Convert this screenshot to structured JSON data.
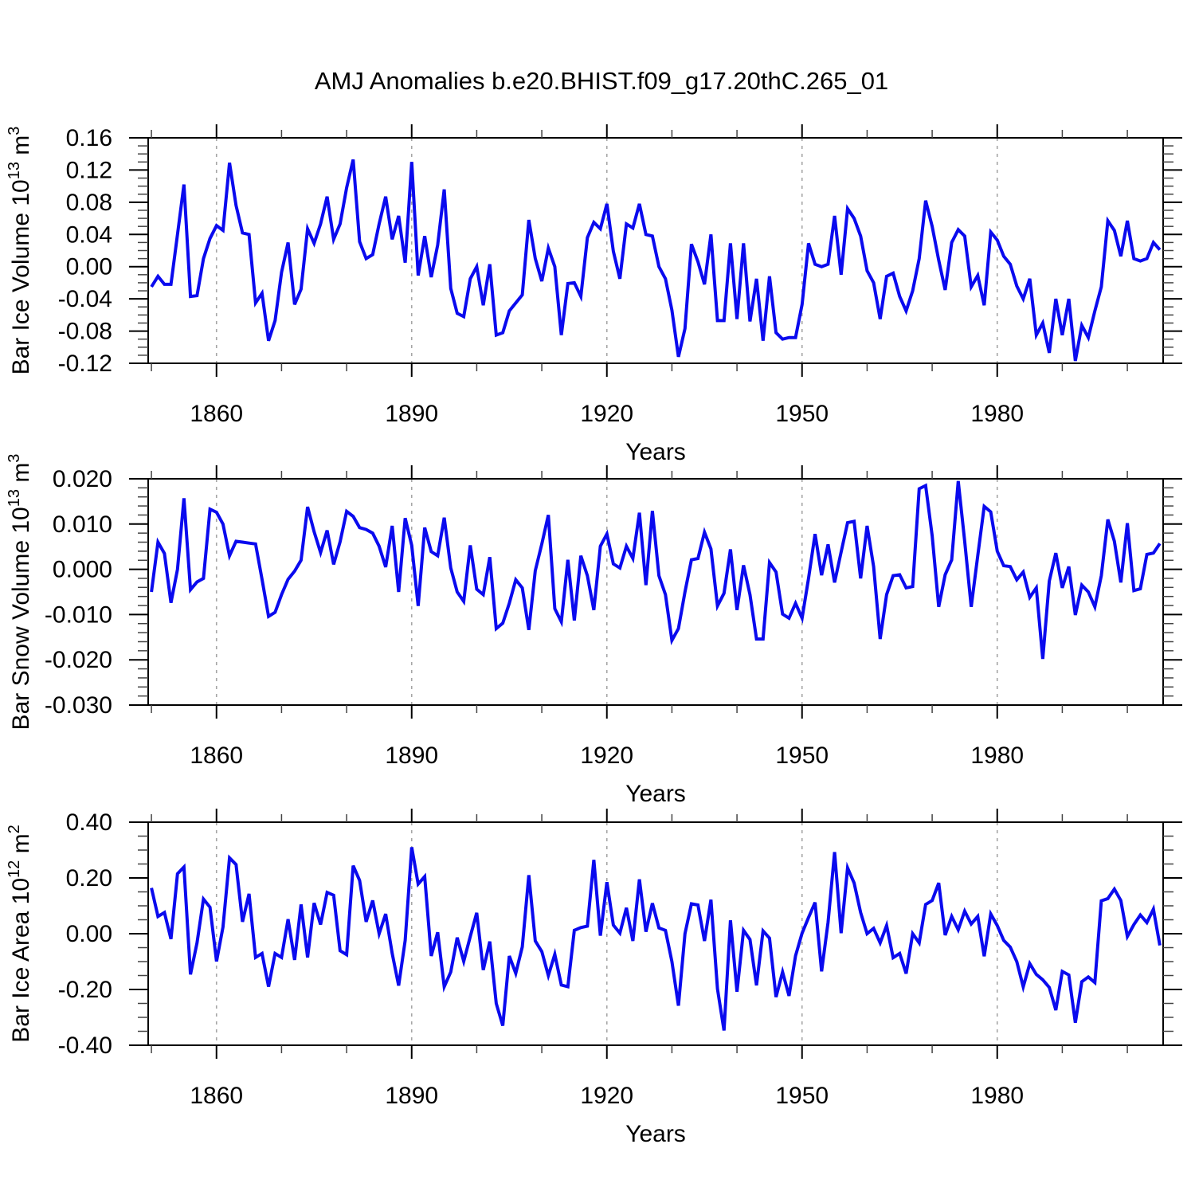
{
  "title": "AMJ Anomalies b.e20.BHIST.f09_g17.20thC.265_01",
  "colors": {
    "line": "#0a0aee",
    "grid_dashed": "#a6a6a6",
    "axis": "#000000",
    "minor_tick": "#444444",
    "background": "#ffffff",
    "text": "#000000"
  },
  "x_axis": {
    "label": "Years",
    "major_ticks": [
      1860,
      1890,
      1920,
      1950,
      1980
    ],
    "minor_step": 10,
    "minor_range": [
      1850,
      2000
    ],
    "range": [
      1849.5,
      2005.5
    ]
  },
  "chart_data": [
    {
      "type": "line",
      "panel": "ice-volume",
      "ylabel": "Bar Ice Volume 10^13 m^3",
      "ylabel_parts": {
        "prefix": "Bar Ice Volume 10",
        "sup1": "13",
        "mid": " m",
        "sup2": "3"
      },
      "xlabel": "Years",
      "x": {
        "start": 1850,
        "end": 2005,
        "step": 1
      },
      "ylim": [
        -0.12,
        0.16
      ],
      "yticks": [
        0.16,
        0.12,
        0.08,
        0.04,
        0.0,
        -0.04,
        -0.08,
        -0.12
      ],
      "yminor_step": 0.01,
      "ytick_decimals": 2,
      "xticks": [
        1860,
        1890,
        1920,
        1950,
        1980
      ],
      "grid_x_dashed": [
        1860,
        1890,
        1920,
        1950,
        1980
      ],
      "legend": "none",
      "series": [
        {
          "name": "AMJ ice volume anomaly",
          "values": [
            -0.025,
            -0.012,
            -0.022,
            -0.022,
            0.04,
            0.102,
            -0.037,
            -0.036,
            0.01,
            0.035,
            0.051,
            0.045,
            0.129,
            0.076,
            0.042,
            0.04,
            -0.045,
            -0.033,
            -0.092,
            -0.067,
            -0.007,
            0.03,
            -0.047,
            -0.028,
            0.047,
            0.029,
            0.053,
            0.087,
            0.034,
            0.053,
            0.098,
            0.133,
            0.031,
            0.01,
            0.015,
            0.053,
            0.087,
            0.034,
            0.063,
            0.005,
            0.13,
            -0.011,
            0.038,
            -0.013,
            0.027,
            0.096,
            -0.027,
            -0.058,
            -0.062,
            -0.015,
            0.0,
            -0.048,
            0.003,
            -0.085,
            -0.082,
            -0.055,
            -0.045,
            -0.035,
            0.058,
            0.01,
            -0.018,
            0.023,
            0.0,
            -0.085,
            -0.021,
            -0.02,
            -0.037,
            0.036,
            0.055,
            0.047,
            0.078,
            0.019,
            -0.015,
            0.053,
            0.048,
            0.078,
            0.04,
            0.038,
            0.0,
            -0.015,
            -0.054,
            -0.112,
            -0.077,
            0.028,
            0.006,
            -0.022,
            0.04,
            -0.067,
            -0.067,
            0.029,
            -0.065,
            0.029,
            -0.068,
            -0.015,
            -0.092,
            -0.012,
            -0.082,
            -0.09,
            -0.088,
            -0.088,
            -0.047,
            0.029,
            0.003,
            0.0,
            0.003,
            0.063,
            -0.01,
            0.072,
            0.06,
            0.038,
            -0.005,
            -0.02,
            -0.065,
            -0.012,
            -0.008,
            -0.037,
            -0.055,
            -0.03,
            0.01,
            0.082,
            0.05,
            0.008,
            -0.029,
            0.03,
            0.046,
            0.038,
            -0.025,
            -0.011,
            -0.048,
            0.043,
            0.033,
            0.013,
            0.003,
            -0.024,
            -0.04,
            -0.015,
            -0.085,
            -0.07,
            -0.107,
            -0.04,
            -0.085,
            -0.04,
            -0.117,
            -0.073,
            -0.088,
            -0.055,
            -0.025,
            0.057,
            0.045,
            0.013,
            0.057,
            0.01,
            0.007,
            0.01,
            0.03,
            0.021
          ]
        }
      ]
    },
    {
      "type": "line",
      "panel": "snow-volume",
      "ylabel": "Bar Snow Volume 10^13 m^3",
      "ylabel_parts": {
        "prefix": "Bar Snow Volume 10",
        "sup1": "13",
        "mid": " m",
        "sup2": "3"
      },
      "xlabel": "Years",
      "x": {
        "start": 1850,
        "end": 2005,
        "step": 1
      },
      "ylim": [
        -0.03,
        0.02
      ],
      "yticks": [
        0.02,
        0.01,
        0.0,
        -0.01,
        -0.02,
        -0.03
      ],
      "yminor_step": 0.002,
      "ytick_decimals": 3,
      "xticks": [
        1860,
        1890,
        1920,
        1950,
        1980
      ],
      "grid_x_dashed": [
        1860,
        1890,
        1920,
        1950,
        1980
      ],
      "legend": "none",
      "series": [
        {
          "name": "AMJ snow volume anomaly",
          "values": [
            -0.005,
            0.006,
            0.0035,
            -0.0074,
            0.0,
            0.0157,
            -0.0045,
            -0.0028,
            -0.002,
            0.0133,
            0.0126,
            0.01,
            0.003,
            0.0062,
            0.006,
            0.0058,
            0.0056,
            -0.0022,
            -0.0104,
            -0.0095,
            -0.0056,
            -0.0022,
            -0.0004,
            0.002,
            0.0138,
            0.0083,
            0.0037,
            0.0086,
            0.0011,
            0.0061,
            0.0128,
            0.0117,
            0.0092,
            0.0088,
            0.008,
            0.0051,
            0.0005,
            0.0096,
            -0.005,
            0.0113,
            0.0053,
            -0.0081,
            0.0092,
            0.0039,
            0.003,
            0.0114,
            0.0003,
            -0.005,
            -0.0071,
            0.0053,
            -0.0044,
            -0.0056,
            0.0027,
            -0.0131,
            -0.0119,
            -0.0075,
            -0.0023,
            -0.0041,
            -0.0134,
            -0.0003,
            0.0056,
            0.012,
            -0.0087,
            -0.0116,
            0.0021,
            -0.0113,
            0.003,
            -0.0014,
            -0.009,
            0.0051,
            0.0078,
            0.0012,
            0.0003,
            0.0051,
            0.0024,
            0.0125,
            -0.0035,
            0.0129,
            -0.0014,
            -0.0056,
            -0.0157,
            -0.0131,
            -0.005,
            0.0021,
            0.0024,
            0.0082,
            0.0045,
            -0.0081,
            -0.0053,
            0.0044,
            -0.009,
            0.0009,
            -0.0056,
            -0.0154,
            -0.0154,
            0.0015,
            -0.0006,
            -0.0099,
            -0.0108,
            -0.0075,
            -0.0108,
            -0.002,
            0.0078,
            -0.0013,
            0.0055,
            -0.0029,
            0.0038,
            0.0103,
            0.0106,
            -0.002,
            0.0096,
            0.0006,
            -0.0154,
            -0.0056,
            -0.0014,
            -0.0012,
            -0.0041,
            -0.0038,
            0.0178,
            0.0185,
            0.0074,
            -0.0083,
            -0.0012,
            0.0021,
            0.0195,
            0.0062,
            -0.0083,
            0.003,
            0.0139,
            0.0127,
            0.004,
            0.0008,
            0.0006,
            -0.0023,
            -0.0006,
            -0.0062,
            -0.0041,
            -0.0198,
            -0.0026,
            0.0036,
            -0.0041,
            0.0006,
            -0.0101,
            -0.0035,
            -0.005,
            -0.0083,
            -0.0014,
            0.011,
            0.0062,
            -0.0029,
            0.0102,
            -0.0047,
            -0.0043,
            0.0033,
            0.0036,
            0.0057
          ]
        }
      ]
    },
    {
      "type": "line",
      "panel": "ice-area",
      "ylabel": "Bar Ice Area 10^12 m^2",
      "ylabel_parts": {
        "prefix": "Bar Ice Area 10",
        "sup1": "12",
        "mid": " m",
        "sup2": "2"
      },
      "xlabel": "Years",
      "x": {
        "start": 1850,
        "end": 2005,
        "step": 1
      },
      "ylim": [
        -0.4,
        0.4
      ],
      "yticks": [
        0.4,
        0.2,
        0.0,
        -0.2,
        -0.4
      ],
      "yminor_step": 0.05,
      "ytick_decimals": 2,
      "xticks": [
        1860,
        1890,
        1920,
        1950,
        1980
      ],
      "grid_x_dashed": [
        1860,
        1890,
        1920,
        1950,
        1980
      ],
      "legend": "none",
      "series": [
        {
          "name": "AMJ ice area anomaly",
          "values": [
            0.164,
            0.062,
            0.076,
            -0.019,
            0.215,
            0.239,
            -0.146,
            -0.033,
            0.124,
            0.095,
            -0.099,
            0.024,
            0.272,
            0.248,
            0.043,
            0.143,
            -0.085,
            -0.071,
            -0.19,
            -0.071,
            -0.085,
            0.052,
            -0.094,
            0.105,
            -0.085,
            0.11,
            0.033,
            0.148,
            0.138,
            -0.061,
            -0.075,
            0.244,
            0.191,
            0.043,
            0.119,
            0.0,
            0.071,
            -0.071,
            -0.186,
            -0.024,
            0.31,
            0.178,
            0.205,
            -0.08,
            0.005,
            -0.19,
            -0.137,
            -0.014,
            -0.099,
            -0.01,
            0.075,
            -0.13,
            -0.028,
            -0.25,
            -0.33,
            -0.08,
            -0.142,
            -0.047,
            0.21,
            -0.026,
            -0.064,
            -0.15,
            -0.074,
            -0.184,
            -0.19,
            0.012,
            0.022,
            0.027,
            0.265,
            -0.007,
            0.185,
            0.031,
            0.002,
            0.093,
            -0.026,
            0.195,
            0.007,
            0.109,
            0.021,
            0.012,
            -0.1,
            -0.258,
            0.0,
            0.107,
            0.103,
            -0.026,
            0.122,
            -0.198,
            -0.347,
            0.048,
            -0.208,
            0.012,
            -0.021,
            -0.185,
            0.01,
            -0.016,
            -0.227,
            -0.137,
            -0.223,
            -0.079,
            0.002,
            0.058,
            0.112,
            -0.135,
            0.041,
            0.293,
            0.002,
            0.236,
            0.182,
            0.076,
            0.0,
            0.019,
            -0.033,
            0.029,
            -0.086,
            -0.071,
            -0.143,
            0.0,
            -0.033,
            0.105,
            0.119,
            0.182,
            -0.005,
            0.062,
            0.014,
            0.081,
            0.035,
            0.062,
            -0.081,
            0.071,
            0.029,
            -0.024,
            -0.048,
            -0.1,
            -0.191,
            -0.107,
            -0.146,
            -0.165,
            -0.193,
            -0.274,
            -0.135,
            -0.148,
            -0.319,
            -0.172,
            -0.155,
            -0.175,
            0.118,
            0.126,
            0.16,
            0.119,
            -0.01,
            0.033,
            0.067,
            0.04,
            0.088,
            -0.042
          ]
        }
      ]
    }
  ]
}
